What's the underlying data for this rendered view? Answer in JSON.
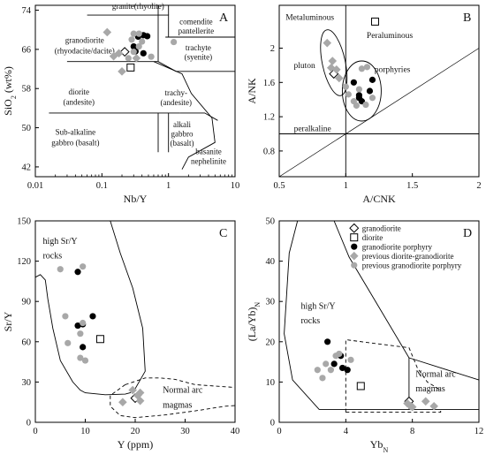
{
  "chart_data": [
    {
      "panel": "A",
      "type": "scatter",
      "xlabel": "Nb/Y",
      "ylabel": "SiO2 (wt%)",
      "x_scale": "log",
      "xlim": [
        0.01,
        10
      ],
      "ylim": [
        40,
        75
      ],
      "xticks": [
        "0.01",
        "0.1",
        "1",
        "10"
      ],
      "yticks": [
        "42",
        "50",
        "58",
        "66",
        "74"
      ],
      "regions": [
        "granite(rhyolite)",
        "granodiorite (rhyodacite/dacite)",
        "comendite pantellerite",
        "trachyte (syenite)",
        "diorite (andesite)",
        "trachy- (andesite)",
        "Sub-alkaline gabbro (basalt)",
        "alkali gabbro (basalt)",
        "basanite nephelinite"
      ],
      "series": [
        {
          "marker": "open-diamond",
          "points": [
            [
              0.22,
              65.5
            ]
          ]
        },
        {
          "marker": "open-square",
          "points": [
            [
              0.27,
              62.3
            ]
          ]
        },
        {
          "marker": "black-circle",
          "points": [
            [
              0.3,
              66.6
            ],
            [
              0.35,
              68.6
            ],
            [
              0.42,
              68.9
            ],
            [
              0.48,
              68.7
            ],
            [
              0.32,
              65.6
            ],
            [
              0.42,
              65.2
            ]
          ]
        },
        {
          "marker": "gray-diamond",
          "points": [
            [
              0.12,
              69.5
            ],
            [
              0.15,
              64.6
            ],
            [
              0.2,
              61.5
            ],
            [
              0.18,
              65.2
            ],
            [
              0.33,
              64.2
            ]
          ]
        },
        {
          "marker": "gray-circle",
          "points": [
            [
              0.3,
              69.2
            ],
            [
              0.36,
              69.2
            ],
            [
              0.28,
              68
            ],
            [
              0.4,
              67.6
            ],
            [
              0.36,
              66.6
            ],
            [
              0.3,
              65.5
            ],
            [
              0.55,
              64.5
            ],
            [
              1.2,
              67.5
            ],
            [
              0.25,
              64.2
            ]
          ]
        }
      ]
    },
    {
      "panel": "B",
      "type": "scatter",
      "xlabel": "A/CNK",
      "ylabel": "A/NK",
      "xlim": [
        0.5,
        2
      ],
      "ylim": [
        0.5,
        2.5
      ],
      "xticks": [
        "0.5",
        "1",
        "1.5",
        "2"
      ],
      "yticks": [
        "0.8",
        "1.2",
        "1.6",
        "2"
      ],
      "regions": [
        "Metaluminous",
        "Peraluminous",
        "peralkaline",
        "pluton",
        "porphyries"
      ],
      "series": [
        {
          "marker": "open-diamond",
          "points": [
            [
              0.91,
              1.7
            ]
          ]
        },
        {
          "marker": "open-square",
          "points": [
            [
              1.22,
              2.31
            ]
          ]
        },
        {
          "marker": "black-circle",
          "points": [
            [
              1.06,
              1.6
            ],
            [
              1.1,
              1.42
            ],
            [
              1.12,
              1.38
            ],
            [
              1.2,
              1.63
            ],
            [
              1.18,
              1.5
            ],
            [
              1.1,
              1.45
            ]
          ]
        },
        {
          "marker": "gray-diamond",
          "points": [
            [
              0.86,
              2.06
            ],
            [
              0.9,
              1.85
            ],
            [
              0.93,
              1.75
            ],
            [
              0.89,
              1.77
            ],
            [
              0.95,
              1.65
            ]
          ]
        },
        {
          "marker": "gray-circle",
          "points": [
            [
              1.02,
              1.46
            ],
            [
              1.06,
              1.38
            ],
            [
              1.08,
              1.33
            ],
            [
              1.15,
              1.34
            ],
            [
              1.1,
              1.52
            ],
            [
              1.12,
              1.76
            ],
            [
              1.16,
              1.78
            ],
            [
              1.2,
              1.42
            ],
            [
              1.0,
              1.55
            ]
          ]
        }
      ]
    },
    {
      "panel": "C",
      "type": "scatter",
      "xlabel": "Y (ppm)",
      "ylabel": "Sr/Y",
      "xlim": [
        0,
        40
      ],
      "ylim": [
        0,
        150
      ],
      "xticks": [
        "0",
        "10",
        "20",
        "30",
        "40"
      ],
      "yticks": [
        "0",
        "30",
        "60",
        "90",
        "120",
        "150"
      ],
      "regions": [
        "high Sr/Y rocks",
        "Normal arc magmas"
      ],
      "series": [
        {
          "marker": "open-diamond",
          "points": [
            [
              20,
              18
            ]
          ]
        },
        {
          "marker": "open-square",
          "points": [
            [
              13,
              62
            ]
          ]
        },
        {
          "marker": "black-circle",
          "points": [
            [
              8.5,
              112
            ],
            [
              8.5,
              72
            ],
            [
              9.5,
              73
            ],
            [
              11.5,
              79
            ],
            [
              9.5,
              56
            ]
          ]
        },
        {
          "marker": "gray-diamond",
          "points": [
            [
              17.5,
              15
            ],
            [
              19.5,
              24
            ],
            [
              20.5,
              20
            ],
            [
              21,
              16
            ],
            [
              21,
              22
            ]
          ]
        },
        {
          "marker": "gray-circle",
          "points": [
            [
              5,
              114
            ],
            [
              9.5,
              116
            ],
            [
              6,
              79
            ],
            [
              9.5,
              74
            ],
            [
              6.5,
              59
            ],
            [
              9,
              48
            ],
            [
              10,
              46
            ],
            [
              9,
              66
            ]
          ]
        }
      ]
    },
    {
      "panel": "D",
      "type": "scatter",
      "xlabel": "YbN",
      "ylabel": "(La/Yb)N",
      "xlim": [
        0,
        12
      ],
      "ylim": [
        0,
        50
      ],
      "xticks": [
        "0",
        "4",
        "8",
        "12"
      ],
      "yticks": [
        "0",
        "10",
        "20",
        "30",
        "40",
        "50"
      ],
      "regions": [
        "high Sr/Y rocks",
        "Normal arc magmas"
      ],
      "legend": [
        "granodiorite",
        "diorite",
        "granodiorite porphyry",
        "previous diorite-granodiorite",
        "previous granodiorite porphyry"
      ],
      "series": [
        {
          "marker": "open-diamond",
          "points": [
            [
              7.8,
              5.2
            ]
          ]
        },
        {
          "marker": "open-square",
          "points": [
            [
              4.9,
              9
            ]
          ]
        },
        {
          "marker": "black-circle",
          "points": [
            [
              2.9,
              20
            ],
            [
              3.7,
              16.5
            ],
            [
              3.3,
              14.5
            ],
            [
              3.8,
              13.5
            ],
            [
              4.1,
              13
            ]
          ]
        },
        {
          "marker": "gray-diamond",
          "points": [
            [
              7.7,
              4.7
            ],
            [
              8.0,
              3.8
            ],
            [
              8.8,
              5.2
            ],
            [
              9.3,
              4.0
            ],
            [
              7.9,
              4.0
            ]
          ]
        },
        {
          "marker": "gray-circle",
          "points": [
            [
              2.3,
              13
            ],
            [
              2.8,
              14.5
            ],
            [
              3.4,
              16.5
            ],
            [
              4.3,
              15.5
            ],
            [
              3.1,
              13
            ],
            [
              3.6,
              17
            ],
            [
              2.6,
              11
            ]
          ]
        }
      ]
    }
  ]
}
